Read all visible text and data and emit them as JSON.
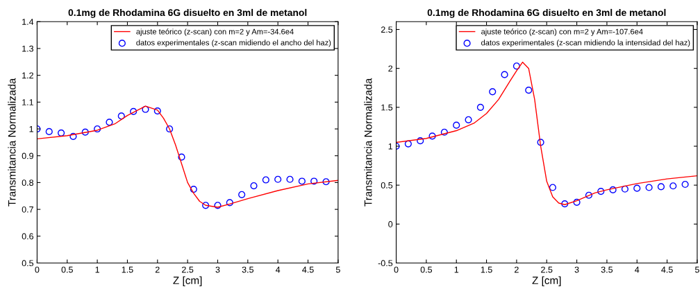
{
  "chart_data": [
    {
      "type": "line",
      "title": "0.1mg de Rhodamina 6G disuelto en 3ml de metanol",
      "xlabel": "Z [cm]",
      "ylabel": "Transmitancia Normalizada",
      "xlim": [
        0,
        5
      ],
      "xticks": [
        0,
        0.5,
        1,
        1.5,
        2,
        2.5,
        3,
        3.5,
        4,
        4.5,
        5
      ],
      "ylim": [
        0.5,
        1.4
      ],
      "yticks": [
        0.5,
        0.6,
        0.7,
        0.8,
        0.9,
        1,
        1.1,
        1.2,
        1.3,
        1.4
      ],
      "grid": false,
      "legend": "top right",
      "series": [
        {
          "name": "ajuste teórico (z-scan) con m=2 y Am=-34.6e4",
          "color": "#ff0000",
          "marker": "none",
          "line_style": "solid",
          "x": [
            0,
            0.5,
            1,
            1.3,
            1.5,
            1.8,
            2.0,
            2.1,
            2.2,
            2.3,
            2.4,
            2.5,
            2.6,
            2.7,
            2.8,
            3.0,
            3.2,
            3.5,
            4.0,
            4.5,
            5.0
          ],
          "values": [
            0.963,
            0.975,
            0.995,
            1.02,
            1.05,
            1.085,
            1.07,
            1.04,
            1.0,
            0.94,
            0.87,
            0.8,
            0.76,
            0.73,
            0.715,
            0.708,
            0.72,
            0.74,
            0.77,
            0.795,
            0.808
          ]
        },
        {
          "name": "datos experimentales (z-scan midiendo el ancho del haz)",
          "type": "scatter",
          "color": "#0000ff",
          "marker": "circle",
          "x": [
            0,
            0.2,
            0.4,
            0.6,
            0.8,
            1.0,
            1.2,
            1.4,
            1.6,
            1.8,
            2.0,
            2.2,
            2.4,
            2.6,
            2.8,
            3.0,
            3.2,
            3.4,
            3.6,
            3.8,
            4.0,
            4.2,
            4.4,
            4.6,
            4.8
          ],
          "values": [
            1.0,
            0.99,
            0.985,
            0.972,
            0.988,
            1.0,
            1.025,
            1.048,
            1.065,
            1.073,
            1.067,
            1.0,
            0.895,
            0.775,
            0.715,
            0.715,
            0.725,
            0.755,
            0.788,
            0.81,
            0.812,
            0.812,
            0.805,
            0.805,
            0.803
          ]
        }
      ]
    },
    {
      "type": "line",
      "title": "0.1mg de Rhodamina 6G disuelto en 3ml de metanol",
      "xlabel": "Z [cm]",
      "ylabel": "Transmitancia Normalizada",
      "xlim": [
        0,
        5
      ],
      "xticks": [
        0,
        0.5,
        1,
        1.5,
        2,
        2.5,
        3,
        3.5,
        4,
        4.5,
        5
      ],
      "ylim": [
        -0.5,
        2.6
      ],
      "yticks": [
        -0.5,
        0,
        0.5,
        1,
        1.5,
        2,
        2.5
      ],
      "grid": false,
      "legend": "top right",
      "series": [
        {
          "name": "ajuste teórico (z-scan) con m=2 y Am=-107.6e4",
          "color": "#ff0000",
          "marker": "none",
          "line_style": "solid",
          "x": [
            0,
            0.5,
            1.0,
            1.3,
            1.5,
            1.7,
            1.9,
            2.0,
            2.1,
            2.2,
            2.3,
            2.4,
            2.5,
            2.6,
            2.7,
            2.8,
            3.0,
            3.3,
            3.5,
            4.0,
            4.5,
            5.0
          ],
          "values": [
            1.05,
            1.1,
            1.2,
            1.3,
            1.42,
            1.6,
            1.85,
            1.97,
            2.08,
            2.0,
            1.6,
            1.0,
            0.55,
            0.35,
            0.27,
            0.25,
            0.3,
            0.4,
            0.44,
            0.52,
            0.58,
            0.62
          ]
        },
        {
          "name": "datos experimentales (z-scan midiendo la intensidad del haz)",
          "type": "scatter",
          "color": "#0000ff",
          "marker": "circle",
          "x": [
            0,
            0.2,
            0.4,
            0.6,
            0.8,
            1.0,
            1.2,
            1.4,
            1.6,
            1.8,
            2.0,
            2.2,
            2.4,
            2.6,
            2.8,
            3.0,
            3.2,
            3.4,
            3.6,
            3.8,
            4.0,
            4.2,
            4.4,
            4.6,
            4.8
          ],
          "values": [
            1.0,
            1.03,
            1.07,
            1.13,
            1.18,
            1.27,
            1.34,
            1.5,
            1.7,
            1.92,
            2.03,
            1.72,
            1.05,
            0.47,
            0.26,
            0.28,
            0.37,
            0.42,
            0.44,
            0.45,
            0.46,
            0.47,
            0.48,
            0.49,
            0.51
          ]
        }
      ]
    }
  ]
}
